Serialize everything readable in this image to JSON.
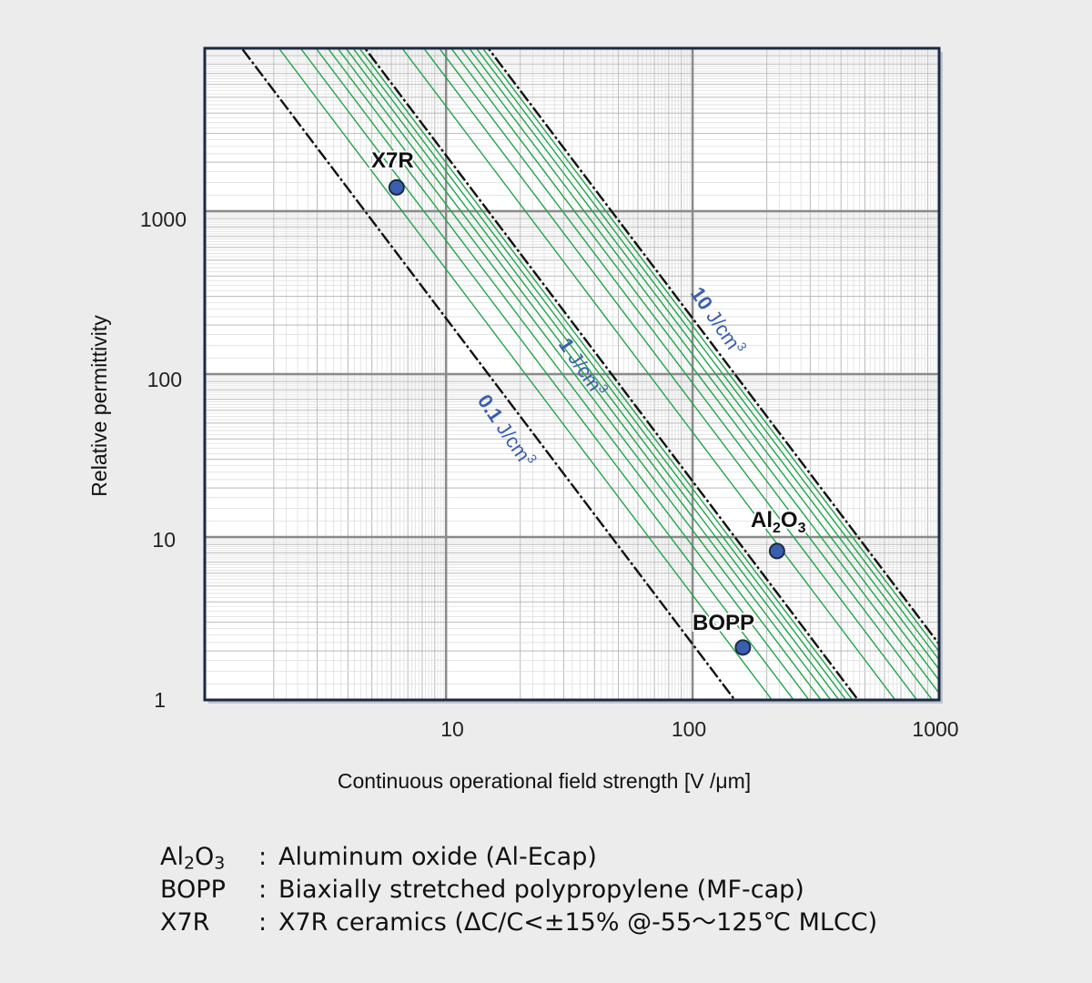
{
  "chart_data": {
    "type": "line",
    "title": "",
    "xlabel": "Continuous operational field strength [V /μm]",
    "ylabel": "Relative permittivity",
    "x_scale": "log",
    "y_scale": "log",
    "xlim": [
      1.05,
      1000
    ],
    "ylim": [
      1,
      10000
    ],
    "x_ticks": [
      10,
      100,
      1000
    ],
    "y_ticks": [
      1,
      10,
      100,
      1000
    ],
    "x_tick_labels": [
      "10",
      "100",
      "1000"
    ],
    "y_tick_labels": [
      "1",
      "10",
      "100",
      "1000"
    ],
    "grid": true,
    "energy_density_lines": [
      {
        "label_value": "0.1",
        "label_unit": "J/cm",
        "label_sup": "3",
        "energy_J_per_cm3": 0.1,
        "style": "dashed",
        "color": "#111111"
      },
      {
        "label_value": "1",
        "label_unit": "J/cm",
        "label_sup": "3",
        "energy_J_per_cm3": 1,
        "style": "dashed",
        "color": "#111111"
      },
      {
        "label_value": "10",
        "label_unit": "J/cm",
        "label_sup": "3",
        "energy_J_per_cm3": 10,
        "style": "dashed",
        "color": "#111111"
      }
    ],
    "intermediate_lines": {
      "color": "#1fa64a",
      "energy_J_per_cm3": [
        0.2,
        0.3,
        0.4,
        0.5,
        0.6,
        0.7,
        0.8,
        0.9,
        2,
        3,
        4,
        5,
        6,
        7,
        8,
        9
      ]
    },
    "points": [
      {
        "name": "X7R",
        "x": 6.3,
        "y": 1400,
        "color": "#3a5fb0"
      },
      {
        "name_main": "Al",
        "name_sub1": "2",
        "name_mid": "O",
        "name_sub2": "3",
        "x": 220,
        "y": 8.2,
        "color": "#3a5fb0"
      },
      {
        "name": "BOPP",
        "x": 160,
        "y": 2.1,
        "color": "#3a5fb0"
      }
    ],
    "label_color": "#3a5fb0",
    "frame_color": "#1b2a44"
  },
  "legend": [
    {
      "key_main": "Al",
      "key_sub1": "2",
      "key_mid": "O",
      "key_sub2": "3",
      "sep": ":",
      "text": "Aluminum oxide (Al-Ecap)"
    },
    {
      "key": "BOPP",
      "sep": ":",
      "text": "Biaxially stretched polypropylene (MF-cap)"
    },
    {
      "key": "X7R",
      "sep": ":",
      "text": "X7R ceramics (ΔC/C<±15% @-55～125℃ MLCC)"
    }
  ]
}
